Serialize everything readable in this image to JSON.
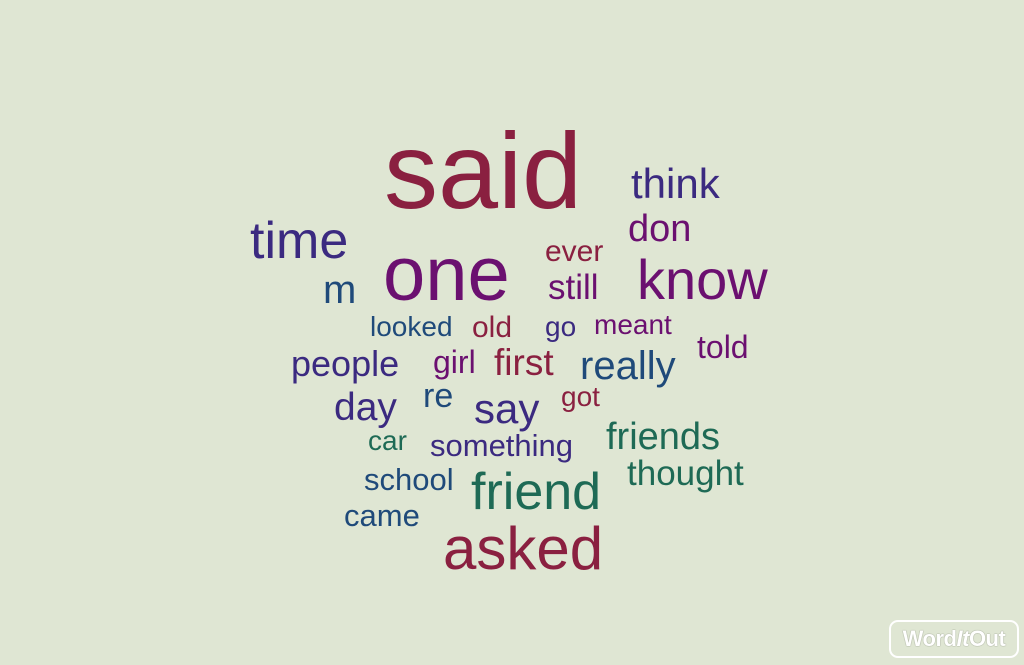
{
  "colors": {
    "background": "#dfe6d3",
    "crimson": "#8a2040",
    "purple": "#6b1070",
    "indigo": "#3b2a80",
    "blue": "#1f4a7a",
    "green": "#1e6a55"
  },
  "words": [
    {
      "text": "said",
      "color": "#8a2040"
    },
    {
      "text": "think",
      "color": "#3b2a80"
    },
    {
      "text": "don",
      "color": "#6b1070"
    },
    {
      "text": "time",
      "color": "#3b2a80"
    },
    {
      "text": "one",
      "color": "#6b1070"
    },
    {
      "text": "ever",
      "color": "#8a2040"
    },
    {
      "text": "still",
      "color": "#6b1070"
    },
    {
      "text": "know",
      "color": "#6b1070"
    },
    {
      "text": "m",
      "color": "#1f4a7a"
    },
    {
      "text": "looked",
      "color": "#1f4a7a"
    },
    {
      "text": "old",
      "color": "#8a2040"
    },
    {
      "text": "go",
      "color": "#3b2a80"
    },
    {
      "text": "meant",
      "color": "#6b1070"
    },
    {
      "text": "told",
      "color": "#6b1070"
    },
    {
      "text": "people",
      "color": "#3b2a80"
    },
    {
      "text": "girl",
      "color": "#6b1070"
    },
    {
      "text": "first",
      "color": "#8a2040"
    },
    {
      "text": "really",
      "color": "#1f4a7a"
    },
    {
      "text": "day",
      "color": "#3b2a80"
    },
    {
      "text": "re",
      "color": "#1f4a7a"
    },
    {
      "text": "say",
      "color": "#3b2a80"
    },
    {
      "text": "got",
      "color": "#8a2040"
    },
    {
      "text": "car",
      "color": "#1e6a55"
    },
    {
      "text": "something",
      "color": "#3b2a80"
    },
    {
      "text": "friends",
      "color": "#1e6a55"
    },
    {
      "text": "school",
      "color": "#1f4a7a"
    },
    {
      "text": "thought",
      "color": "#1e6a55"
    },
    {
      "text": "friend",
      "color": "#1e6a55"
    },
    {
      "text": "came",
      "color": "#1f4a7a"
    },
    {
      "text": "asked",
      "color": "#8a2040"
    }
  ],
  "logo": {
    "part1": "Word",
    "part2": "It",
    "part3": "Out"
  }
}
